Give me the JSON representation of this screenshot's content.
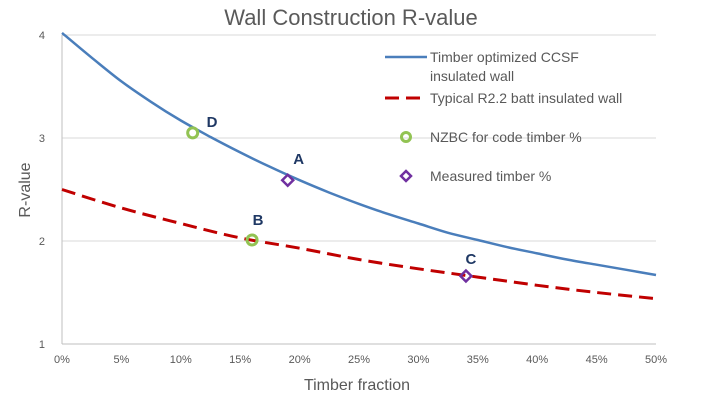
{
  "chart_data": {
    "type": "line",
    "title": "Wall Construction R-value",
    "xlabel": "Timber fraction",
    "ylabel": "R-value",
    "xlim": [
      0,
      0.5
    ],
    "ylim": [
      1,
      4
    ],
    "x_ticks": [
      0,
      0.05,
      0.1,
      0.15,
      0.2,
      0.25,
      0.3,
      0.35,
      0.4,
      0.45,
      0.5
    ],
    "x_tick_labels": [
      "0%",
      "5%",
      "10%",
      "15%",
      "20%",
      "25%",
      "30%",
      "35%",
      "40%",
      "45%",
      "50%"
    ],
    "y_ticks": [
      1,
      2,
      3,
      4
    ],
    "y_tick_labels": [
      "1",
      "2",
      "3",
      "4"
    ],
    "grid": "horizontal",
    "legend_position": "top-right",
    "series": [
      {
        "name": "Timber optimized CCSF insulated wall",
        "style": "solid",
        "color": "#4a7ebb",
        "x": [
          0,
          0.025,
          0.05,
          0.075,
          0.1,
          0.125,
          0.15,
          0.175,
          0.2,
          0.225,
          0.25,
          0.275,
          0.3,
          0.325,
          0.35,
          0.375,
          0.4,
          0.425,
          0.45,
          0.475,
          0.5
        ],
        "y": [
          4.02,
          3.78,
          3.55,
          3.35,
          3.17,
          3.01,
          2.86,
          2.72,
          2.59,
          2.47,
          2.36,
          2.26,
          2.17,
          2.08,
          2.01,
          1.94,
          1.88,
          1.82,
          1.77,
          1.72,
          1.67
        ]
      },
      {
        "name": "Typical R2.2 batt insulated wall",
        "style": "dashed",
        "color": "#c00000",
        "x": [
          0,
          0.05,
          0.1,
          0.15,
          0.2,
          0.25,
          0.3,
          0.35,
          0.4,
          0.45,
          0.5
        ],
        "y": [
          2.5,
          2.32,
          2.17,
          2.03,
          1.93,
          1.82,
          1.73,
          1.65,
          1.57,
          1.5,
          1.44
        ]
      }
    ],
    "markers": [
      {
        "name": "NZBC for code timber %",
        "shape": "circle",
        "color": "#92c353",
        "points": [
          {
            "label": "D",
            "x": 0.11,
            "y": 3.05
          },
          {
            "label": "B",
            "x": 0.16,
            "y": 2.01
          }
        ]
      },
      {
        "name": "Measured timber %",
        "shape": "diamond",
        "color": "#7030a0",
        "points": [
          {
            "label": "A",
            "x": 0.19,
            "y": 2.59
          },
          {
            "label": "C",
            "x": 0.34,
            "y": 1.66
          }
        ]
      }
    ],
    "legend": [
      {
        "label_lines": [
          "Timber optimized CCSF",
          "insulated wall"
        ],
        "kind": "line-solid",
        "color": "#4a7ebb"
      },
      {
        "label_lines": [
          "Typical R2.2 batt insulated wall"
        ],
        "kind": "line-dashed",
        "color": "#c00000"
      },
      {
        "label_lines": [
          "NZBC for code timber %"
        ],
        "kind": "circle",
        "color": "#92c353"
      },
      {
        "label_lines": [
          "Measured timber %"
        ],
        "kind": "diamond",
        "color": "#7030a0"
      }
    ]
  }
}
